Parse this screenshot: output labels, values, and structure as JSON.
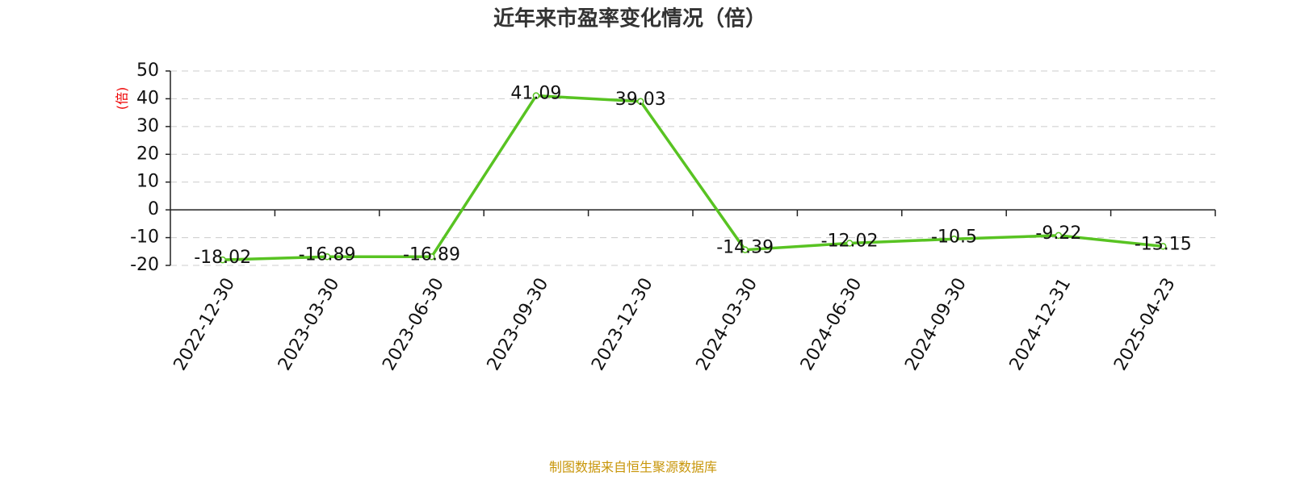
{
  "chart_data": {
    "type": "line",
    "title": "近年来市盈率变化情况（倍）",
    "y_label": "(倍)",
    "source": "制图数据来自恒生聚源数据库",
    "categories": [
      "2022-12-30",
      "2023-03-30",
      "2023-06-30",
      "2023-09-30",
      "2023-12-30",
      "2024-03-30",
      "2024-06-30",
      "2024-09-30",
      "2024-12-31",
      "2025-04-23"
    ],
    "values": [
      -18.02,
      -16.89,
      -16.89,
      41.09,
      39.03,
      -14.39,
      -12.02,
      -10.5,
      -9.22,
      -13.15
    ],
    "color": "#58c322",
    "ylim": [
      -20,
      50
    ],
    "yticks": [
      -20,
      -10,
      0,
      10,
      20,
      30,
      40,
      50
    ],
    "grid": true
  }
}
